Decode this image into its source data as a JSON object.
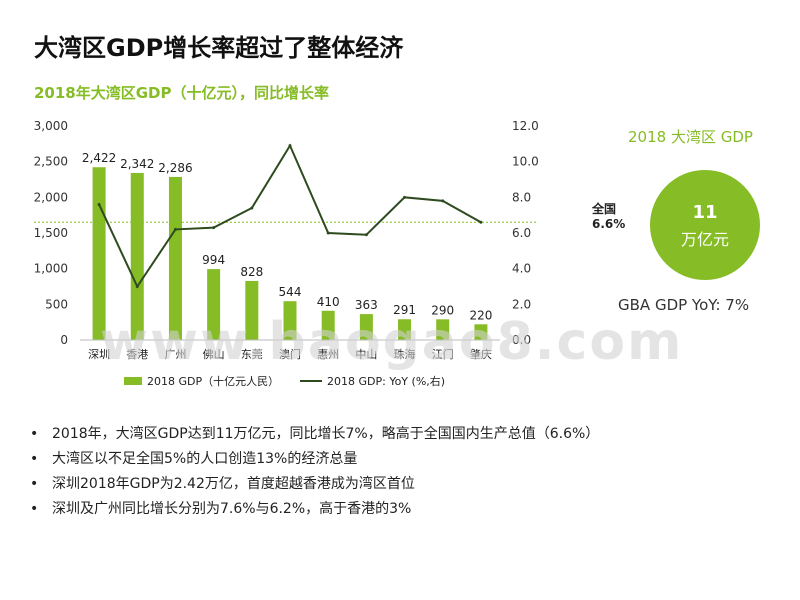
{
  "slide": {
    "title": "大湾区GDP增长率超过了整体经济",
    "chart_subtitle": "2018年大湾区GDP（十亿元），同比增长率",
    "watermark": "www.baogao8.com"
  },
  "kpi": {
    "title": "2018 大湾区 GDP",
    "value": "11",
    "unit": "万亿元",
    "national_label": "全国",
    "national_value": "6.6%",
    "yoy_text": "GBA GDP YoY: 7%"
  },
  "bullets": [
    "2018年，大湾区GDP达到11万亿元，同比增长7%，略高于全国国内生产总值（6.6%）",
    "大湾区以不足全国5%的人口创造13%的经济总量",
    "深圳2018年GDP为2.42万亿，首度超越香港成为湾区首位",
    "深圳及广州同比增长分别为7.6%与6.2%，高于香港的3%"
  ],
  "colors": {
    "accent": "#86bc25",
    "line": "#2e4a1f",
    "reference": "#86bc25"
  },
  "chart_data": {
    "type": "bar",
    "categories": [
      "深圳",
      "香港",
      "广州",
      "佛山",
      "东莞",
      "澳门",
      "惠州",
      "中山",
      "珠海",
      "江门",
      "肇庆"
    ],
    "series": [
      {
        "name": "2018 GDP（十亿元人民）",
        "type": "bar",
        "values": [
          2422,
          2342,
          2286,
          994,
          828,
          544,
          410,
          363,
          291,
          290,
          220
        ],
        "labels": [
          "2,422",
          "2,342",
          "2,286",
          "994",
          "828",
          "544",
          "410",
          "363",
          "291",
          "290",
          "220"
        ]
      },
      {
        "name": "2018 GDP: YoY (%,右)",
        "type": "line",
        "axis": "right",
        "values": [
          7.6,
          3.0,
          6.2,
          6.3,
          7.4,
          10.9,
          6.0,
          5.9,
          8.0,
          7.8,
          6.6
        ]
      }
    ],
    "reference_line": {
      "axis": "right",
      "value": 6.6
    },
    "y_left": {
      "lim": [
        0,
        3000
      ],
      "ticks": [
        "0",
        "500",
        "1,000",
        "1,500",
        "2,000",
        "2,500",
        "3,000"
      ],
      "tick_values": [
        0,
        500,
        1000,
        1500,
        2000,
        2500,
        3000
      ]
    },
    "y_right": {
      "lim": [
        0,
        12
      ],
      "ticks": [
        "0.0",
        "2.0",
        "4.0",
        "6.0",
        "8.0",
        "10.0",
        "12.0"
      ],
      "tick_values": [
        0,
        2,
        4,
        6,
        8,
        10,
        12
      ]
    },
    "grid": false,
    "legend": "bottom"
  }
}
